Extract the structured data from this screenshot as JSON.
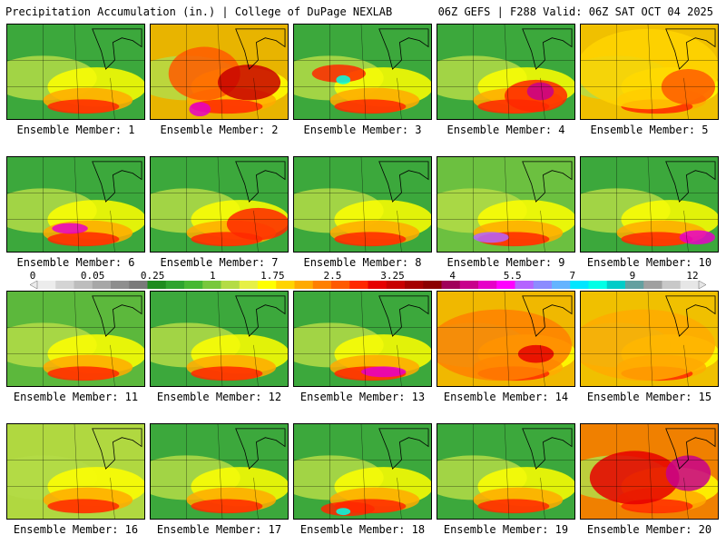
{
  "header": {
    "title": "Precipitation Accumulation (in.) | College of DuPage NEXLAB",
    "run_info": "06Z GEFS | F288 Valid: 06Z SAT OCT 04 2025"
  },
  "colorbar": {
    "tick_labels": [
      "0",
      "0.05",
      "0.25",
      "1",
      "1.75",
      "2.5",
      "3.25",
      "4",
      "5.5",
      "7",
      "9",
      "12"
    ],
    "colors": [
      "#ececec",
      "#d4d4d4",
      "#bdbdbd",
      "#a7a7a7",
      "#8e8e8e",
      "#7a7a7a",
      "#1e8c1e",
      "#2ea42e",
      "#46b832",
      "#78c83c",
      "#b4dc46",
      "#e6f046",
      "#ffff00",
      "#ffd400",
      "#ffaa00",
      "#ff8000",
      "#ff5a00",
      "#ff2800",
      "#e60000",
      "#c80000",
      "#a50000",
      "#8c0000",
      "#a0005a",
      "#c8008c",
      "#e600c8",
      "#ff00ff",
      "#b464ff",
      "#8c8cff",
      "#64b4ff",
      "#00e6ff",
      "#00ffe6",
      "#00ccc8",
      "#64a0a0",
      "#a0a0a0",
      "#c8c8c8",
      "#e6e6e6"
    ]
  },
  "panels": [
    {
      "label": "Ensemble Member: 1"
    },
    {
      "label": "Ensemble Member: 2"
    },
    {
      "label": "Ensemble Member: 3"
    },
    {
      "label": "Ensemble Member: 4"
    },
    {
      "label": "Ensemble Member: 5"
    },
    {
      "label": "Ensemble Member: 6"
    },
    {
      "label": "Ensemble Member: 7"
    },
    {
      "label": "Ensemble Member: 8"
    },
    {
      "label": "Ensemble Member: 9"
    },
    {
      "label": "Ensemble Member: 10"
    },
    {
      "label": "Ensemble Member: 11"
    },
    {
      "label": "Ensemble Member: 12"
    },
    {
      "label": "Ensemble Member: 13"
    },
    {
      "label": "Ensemble Member: 14"
    },
    {
      "label": "Ensemble Member: 15"
    },
    {
      "label": "Ensemble Member: 16"
    },
    {
      "label": "Ensemble Member: 17"
    },
    {
      "label": "Ensemble Member: 18"
    },
    {
      "label": "Ensemble Member: 19"
    },
    {
      "label": "Ensemble Member: 20"
    }
  ]
}
